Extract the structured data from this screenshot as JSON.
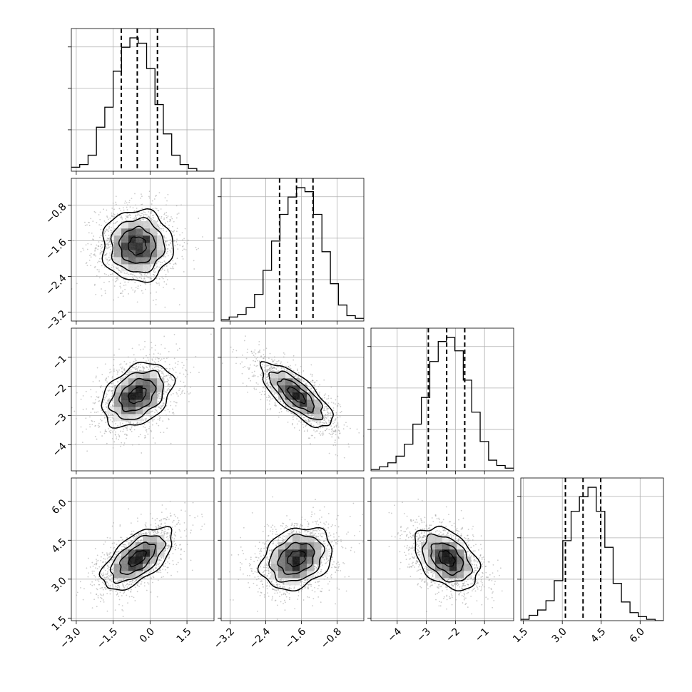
{
  "chart_data": {
    "type": "corner",
    "grid": true,
    "parameters": [
      {
        "range": [
          -3.2,
          2.6
        ],
        "ticks": [
          -3.0,
          -1.5,
          0.0,
          1.5
        ],
        "tick_labels": [
          "−3.0",
          "−1.5",
          "0.0",
          "1.5"
        ],
        "quantiles": [
          -1.17,
          -0.52,
          0.3
        ],
        "hist_bins": [
          -3.2,
          -2.86,
          -2.52,
          -2.18,
          -1.84,
          -1.5,
          -1.16,
          -0.82,
          -0.48,
          -0.14,
          0.2,
          0.54,
          0.88,
          1.22,
          1.56,
          1.9,
          2.24,
          2.58
        ],
        "hist_counts": [
          0.03,
          0.05,
          0.12,
          0.33,
          0.48,
          0.75,
          0.93,
          1.0,
          0.96,
          0.77,
          0.5,
          0.28,
          0.12,
          0.05,
          0.02,
          0.0,
          0.0
        ]
      },
      {
        "range": [
          -3.4,
          -0.2
        ],
        "ticks": [
          -3.2,
          -2.4,
          -1.6,
          -0.8
        ],
        "tick_labels": [
          "−3.2",
          "−2.4",
          "−1.6",
          "−0.8"
        ],
        "quantiles": [
          -2.09,
          -1.71,
          -1.34
        ],
        "hist_bins": [
          -3.4,
          -3.22,
          -3.03,
          -2.84,
          -2.65,
          -2.46,
          -2.27,
          -2.08,
          -1.9,
          -1.71,
          -1.52,
          -1.33,
          -1.14,
          -0.95,
          -0.77,
          -0.58,
          -0.39,
          -0.2
        ],
        "hist_counts": [
          0.01,
          0.03,
          0.05,
          0.1,
          0.2,
          0.38,
          0.6,
          0.8,
          0.93,
          1.0,
          0.97,
          0.8,
          0.52,
          0.28,
          0.12,
          0.04,
          0.02
        ]
      },
      {
        "range": [
          -4.9,
          0.0
        ],
        "ticks": [
          -4,
          -3,
          -2,
          -1
        ],
        "tick_labels": [
          "−4",
          "−3",
          "−2",
          "−1"
        ],
        "quantiles": [
          -2.93,
          -2.3,
          -1.68
        ],
        "hist_bins": [
          -4.9,
          -4.61,
          -4.32,
          -4.04,
          -3.75,
          -3.46,
          -3.17,
          -2.88,
          -2.59,
          -2.31,
          -2.02,
          -1.73,
          -1.44,
          -1.15,
          -0.86,
          -0.58,
          -0.29,
          0.0
        ],
        "hist_counts": [
          0.01,
          0.03,
          0.06,
          0.11,
          0.2,
          0.35,
          0.55,
          0.82,
          0.97,
          1.0,
          0.9,
          0.68,
          0.44,
          0.22,
          0.08,
          0.04,
          0.02
        ]
      },
      {
        "range": [
          1.4,
          6.9
        ],
        "ticks": [
          1.5,
          3.0,
          4.5,
          6.0
        ],
        "tick_labels": [
          "1.5",
          "3.0",
          "4.5",
          "6.0"
        ],
        "quantiles": [
          3.12,
          3.8,
          4.48
        ],
        "hist_bins": [
          1.4,
          1.72,
          2.05,
          2.37,
          2.69,
          3.02,
          3.34,
          3.66,
          3.99,
          4.31,
          4.64,
          4.96,
          5.28,
          5.61,
          5.93,
          6.25,
          6.58,
          6.9
        ],
        "hist_counts": [
          0.01,
          0.04,
          0.08,
          0.15,
          0.3,
          0.6,
          0.82,
          0.93,
          1.0,
          0.82,
          0.55,
          0.28,
          0.14,
          0.06,
          0.03,
          0.01,
          0.0
        ]
      }
    ],
    "pairs": [
      {
        "row": 1,
        "col": 0,
        "mean": [
          -0.52,
          -1.71
        ],
        "sd": [
          0.72,
          0.4
        ],
        "rho": 0.0
      },
      {
        "row": 2,
        "col": 0,
        "mean": [
          -0.52,
          -2.3
        ],
        "sd": [
          0.72,
          0.55
        ],
        "rho": 0.35
      },
      {
        "row": 2,
        "col": 1,
        "mean": [
          -1.71,
          -2.3
        ],
        "sd": [
          0.4,
          0.55
        ],
        "rho": -0.75
      },
      {
        "row": 3,
        "col": 0,
        "mean": [
          -0.52,
          3.8
        ],
        "sd": [
          0.72,
          0.6
        ],
        "rho": 0.6
      },
      {
        "row": 3,
        "col": 1,
        "mean": [
          -1.71,
          3.8
        ],
        "sd": [
          0.4,
          0.6
        ],
        "rho": 0.25
      },
      {
        "row": 3,
        "col": 2,
        "mean": [
          -2.3,
          3.8
        ],
        "sd": [
          0.55,
          0.6
        ],
        "rho": -0.4
      }
    ],
    "contour_levels_sigma": [
      0.5,
      1.0,
      1.5,
      2.0
    ],
    "colors": {
      "line": "#000000",
      "points": "#a0a0a0",
      "density_low": "#e8e8e8",
      "density_high": "#000000"
    }
  }
}
